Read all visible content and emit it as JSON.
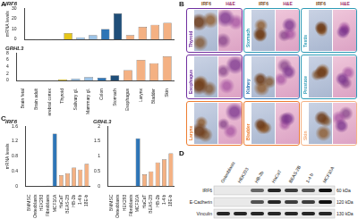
{
  "chart_data": [
    {
      "panel": "A",
      "type": "bar",
      "title": "IRF6",
      "y_label": "mRNA levels",
      "categories": [
        "Brain fetal",
        "Brain adult",
        "Cerebral cortex",
        "Thyroid",
        "Salivary gl.",
        "Mammary gl.",
        "Colon",
        "Stomach",
        "Esophagus",
        "Larynx",
        "Bladder",
        "Skin"
      ],
      "values": [
        0.2,
        0.3,
        0.2,
        6,
        2,
        4,
        10,
        25,
        4,
        12,
        14,
        16
      ],
      "colors": [
        "#a6a6a6",
        "#a6a6a6",
        "#a6a6a6",
        "#e6c619",
        "#9dc3e6",
        "#9dc3e6",
        "#2e75b6",
        "#1f4e79",
        "#f4b183",
        "#f4b183",
        "#f4b183",
        "#f4b183"
      ],
      "ylim": [
        0,
        30
      ],
      "yticks": [
        0,
        10,
        20,
        30
      ],
      "grid": false,
      "tick_labels": "y"
    },
    {
      "type": "bar",
      "title": "GRHL3",
      "categories": [
        "Brain fetal",
        "Brain adult",
        "Cerebral cortex",
        "Thyroid",
        "Salivary gl.",
        "Mammary gl.",
        "Colon",
        "Stomach",
        "Esophagus",
        "Larynx",
        "Bladder",
        "Skin"
      ],
      "values": [
        0,
        0,
        0,
        0.3,
        0.5,
        1,
        0.8,
        1.5,
        3,
        6,
        5,
        7
      ],
      "colors": [
        "#a6a6a6",
        "#a6a6a6",
        "#a6a6a6",
        "#e6c619",
        "#9dc3e6",
        "#9dc3e6",
        "#2e75b6",
        "#1f4e79",
        "#f4b183",
        "#f4b183",
        "#f4b183",
        "#f4b183"
      ],
      "ylim": [
        0,
        8
      ],
      "yticks": [
        0,
        2,
        4,
        6,
        8
      ],
      "grid": false
    },
    {
      "panel": "C",
      "type": "bar",
      "title": "IRF6",
      "y_label": "mRNA levels",
      "categories": [
        "BMMSC",
        "Osteoblasts",
        "HEK293",
        "Fibroblasts",
        "MCF10A",
        "HaCaT",
        "BEAS-2B",
        "HB-2b",
        "1-4 b",
        "18E-b"
      ],
      "values": [
        0,
        0,
        0,
        0.02,
        1.4,
        0.3,
        0.35,
        0.5,
        0.45,
        0.6
      ],
      "colors": [
        "#a6a6a6",
        "#a6a6a6",
        "#a6a6a6",
        "#a6a6a6",
        "#2e75b6",
        "#f4b183",
        "#f4b183",
        "#f4b183",
        "#f4b183",
        "#f4b183"
      ],
      "ylim": [
        0,
        1.6
      ],
      "yticks": [
        0,
        0.4,
        0.8,
        1.2,
        1.6
      ],
      "grid": false
    },
    {
      "type": "bar",
      "title": "GRHL3",
      "categories": [
        "BMMSC",
        "Osteoblasts",
        "HEK293",
        "Fibroblasts",
        "MCF10A",
        "HaCaT",
        "BEAS-2B",
        "HB-2b",
        "1-4 b",
        "18E-b"
      ],
      "values": [
        0,
        0,
        0,
        0,
        1.6,
        0.4,
        0.5,
        0.8,
        0.9,
        1.1
      ],
      "colors": [
        "#a6a6a6",
        "#a6a6a6",
        "#a6a6a6",
        "#a6a6a6",
        "#2e75b6",
        "#f4b183",
        "#f4b183",
        "#f4b183",
        "#f4b183",
        "#f4b183"
      ],
      "ylim": [
        0,
        2
      ],
      "yticks": [
        0,
        0.5,
        1,
        1.5,
        2
      ],
      "grid": false
    }
  ],
  "panel_B": {
    "panel": "B",
    "columns": [
      "IRF6",
      "H&E"
    ],
    "tissues": [
      {
        "name": "Thyroid",
        "color": "#7030a0"
      },
      {
        "name": "Stomach",
        "color": "#2e9bb6"
      },
      {
        "name": "Testis",
        "color": "#2e9bb6"
      },
      {
        "name": "Esophagus",
        "color": "#7030a0"
      },
      {
        "name": "Kidney",
        "color": "#2e75b6"
      },
      {
        "name": "Prostate",
        "color": "#2e9bb6"
      },
      {
        "name": "Larynx",
        "color": "#ed7d31"
      },
      {
        "name": "Bladder",
        "color": "#ed7d31"
      },
      {
        "name": "Skin",
        "color": "#f4b183"
      }
    ]
  },
  "panel_D": {
    "panel": "D",
    "lanes": [
      "Osteoblasts",
      "HEK293",
      "HB-2b",
      "HaCaT",
      "BEAS-2B",
      "1-4 b",
      "MCF10A"
    ],
    "blots": [
      {
        "protein": "IRF6",
        "size": "60 kDa",
        "bands": [
          0,
          0,
          0.6,
          0.9,
          0.8,
          0.7,
          1
        ]
      },
      {
        "protein": "E-Cadherin",
        "size": "120 kDa",
        "bands": [
          0,
          0,
          0.7,
          0.9,
          0.8,
          0.8,
          1
        ]
      },
      {
        "protein": "Vinculin",
        "size": "130 kDa",
        "bands": [
          0.9,
          0.9,
          0.9,
          0.9,
          0.9,
          0.9,
          0.9
        ]
      }
    ]
  }
}
